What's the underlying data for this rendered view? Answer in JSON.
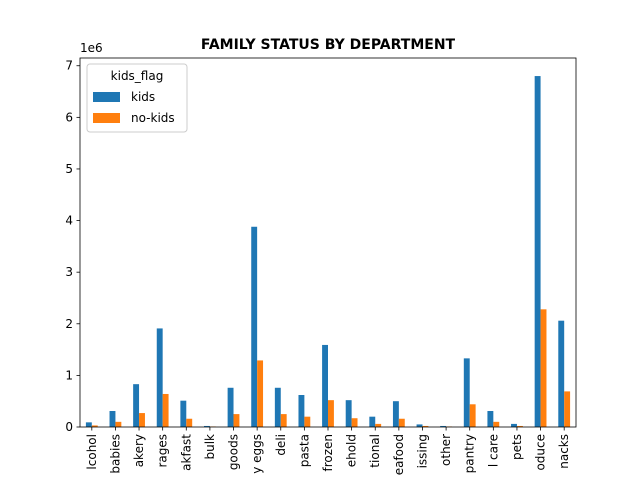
{
  "chart_data": {
    "type": "bar",
    "title": "FAMILY STATUS BY DEPARTMENT",
    "xlabel": "",
    "ylabel": "",
    "y_offset_text": "1e6",
    "ylim": [
      0,
      7.15
    ],
    "yticks": [
      0,
      1,
      2,
      3,
      4,
      5,
      6,
      7
    ],
    "categories": [
      "lcohol",
      "babies",
      "akery",
      "rages",
      "akfast",
      "bulk",
      "goods",
      "y eggs",
      "deli",
      "pasta",
      "frozen",
      "ehold",
      "tional",
      "eafood",
      "issing",
      "other",
      "pantry",
      "l care",
      "pets",
      "oduce",
      "nacks"
    ],
    "series": [
      {
        "name": "kids",
        "color": "#1f77b4",
        "values": [
          0.09,
          0.31,
          0.83,
          1.91,
          0.51,
          0.02,
          0.76,
          3.88,
          0.76,
          0.62,
          1.59,
          0.52,
          0.2,
          0.5,
          0.05,
          0.02,
          1.33,
          0.31,
          0.06,
          6.8,
          2.06
        ]
      },
      {
        "name": "no-kids",
        "color": "#ff7f0e",
        "values": [
          0.03,
          0.1,
          0.27,
          0.64,
          0.16,
          0.01,
          0.25,
          1.29,
          0.25,
          0.2,
          0.52,
          0.17,
          0.06,
          0.16,
          0.02,
          0.01,
          0.44,
          0.1,
          0.02,
          2.28,
          0.69
        ]
      }
    ],
    "legend": {
      "title": "kids_flag",
      "placement": "top-left"
    },
    "grid": false
  }
}
